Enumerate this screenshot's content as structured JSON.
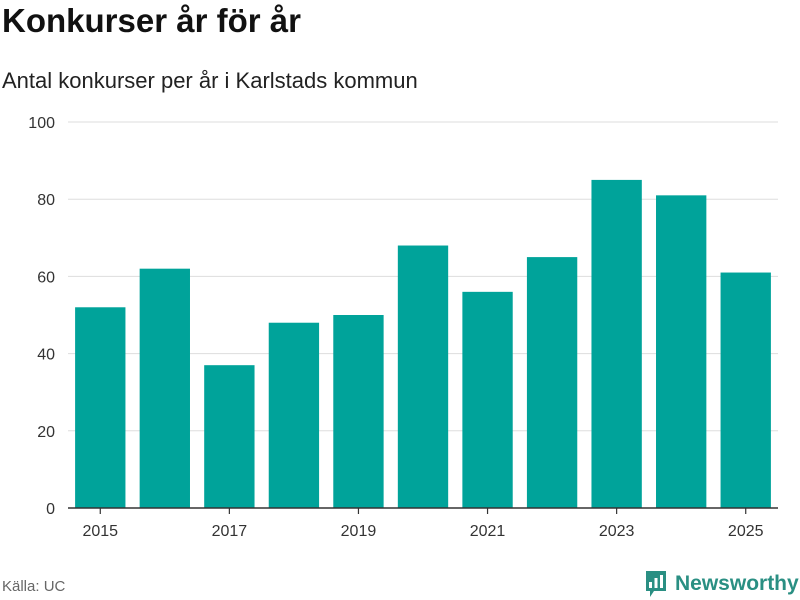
{
  "header": {
    "title": "Konkurser år för år",
    "subtitle": "Antal konkurser per år i Karlstads kommun"
  },
  "footer": {
    "source": "Källa: UC",
    "brand": "Newsworthy"
  },
  "colors": {
    "bar": "#00a39a",
    "grid": "#dddddd",
    "axis": "#333333",
    "brand": "#2a8f83"
  },
  "chart_data": {
    "type": "bar",
    "categories": [
      "2015",
      "2016",
      "2017",
      "2018",
      "2019",
      "2020",
      "2021",
      "2022",
      "2023",
      "2024",
      "2025"
    ],
    "values": [
      52,
      62,
      37,
      48,
      50,
      68,
      56,
      65,
      85,
      81,
      61
    ],
    "x_tick_labels": [
      "2015",
      "2017",
      "2019",
      "2021",
      "2023",
      "2025"
    ],
    "y_ticks": [
      0,
      20,
      40,
      60,
      80,
      100
    ],
    "ylim": [
      0,
      100
    ],
    "grid": true,
    "legend": "none"
  }
}
